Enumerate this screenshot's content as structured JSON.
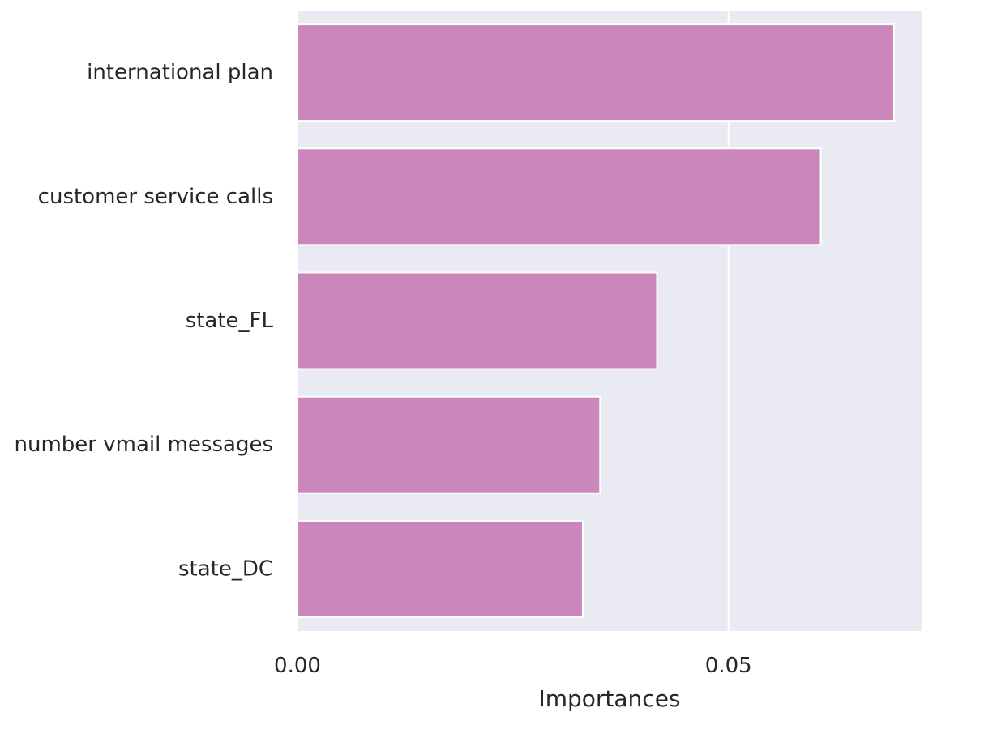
{
  "chart_data": {
    "type": "bar",
    "orientation": "horizontal",
    "categories": [
      "international plan",
      "customer service calls",
      "state_FL",
      "number vmail messages",
      "state_DC"
    ],
    "values": [
      0.0692,
      0.0607,
      0.0417,
      0.0351,
      0.0331
    ],
    "title": "",
    "xlabel": "Importances",
    "ylabel": "",
    "xlim": [
      0.0,
      0.0725
    ],
    "xticks": [
      0.0,
      0.05
    ],
    "xtick_labels": [
      "0.00",
      "0.05"
    ],
    "grid": true,
    "colors": {
      "bar": "#cb87bb",
      "bar_edge": "#ffffff",
      "background": "#eaeaf2",
      "grid": "#ffffff",
      "text": "#262626"
    }
  }
}
